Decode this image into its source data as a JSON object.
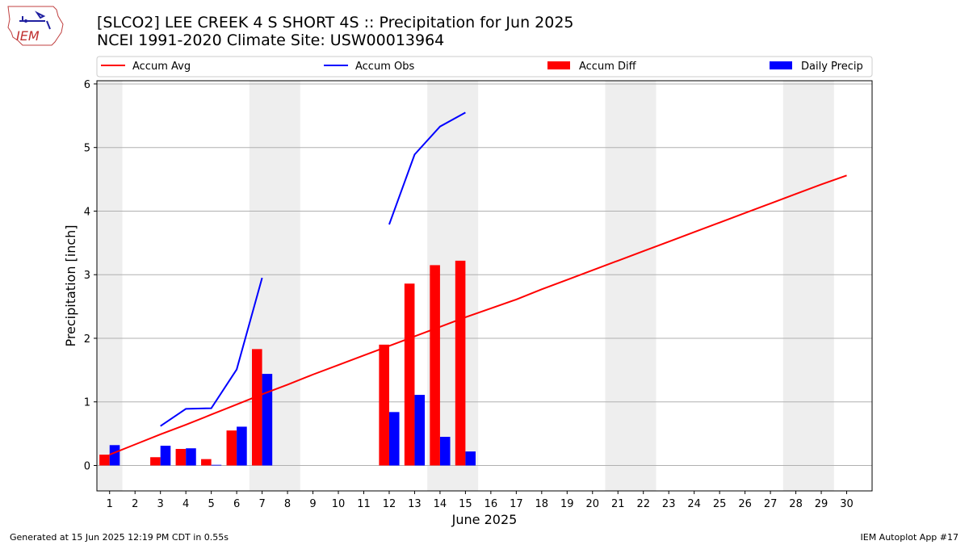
{
  "header": {
    "title_line1": "[SLCO2] LEE CREEK 4 S SHORT 4S :: Precipitation for Jun 2025",
    "title_line2": "NCEI 1991-2020 Climate Site: USW00013964",
    "logo_text": "IEM"
  },
  "footer": {
    "generated": "Generated at 15 Jun 2025 12:19 PM CDT in 0.55s",
    "app": "IEM Autoplot App #17"
  },
  "colors": {
    "accum_avg": "#ff0000",
    "accum_obs": "#0000ff",
    "accum_diff": "#ff0000",
    "daily_precip": "#0000ff",
    "weekend_shade": "#eeeeee",
    "grid": "#b0b0b0"
  },
  "chart_data": {
    "type": "bar",
    "xlabel": "June 2025",
    "ylabel": "Precipitation [inch]",
    "ylim": [
      -0.4,
      6.05
    ],
    "xlim": [
      0.5,
      31.0
    ],
    "yticks": [
      0,
      1,
      2,
      3,
      4,
      5,
      6
    ],
    "xticks": [
      1,
      2,
      3,
      4,
      5,
      6,
      7,
      8,
      9,
      10,
      11,
      12,
      13,
      14,
      15,
      16,
      17,
      18,
      19,
      20,
      21,
      22,
      23,
      24,
      25,
      26,
      27,
      28,
      29,
      30
    ],
    "grid": "y",
    "legend_position": "top",
    "legend": [
      "Accum Avg",
      "Accum Obs",
      "Accum Diff",
      "Daily Precip"
    ],
    "weekend_spans": [
      [
        0.5,
        1.5
      ],
      [
        6.5,
        8.5
      ],
      [
        13.5,
        15.5
      ],
      [
        20.5,
        22.5
      ],
      [
        27.5,
        29.5
      ]
    ],
    "series": [
      {
        "name": "Accum Avg",
        "kind": "line",
        "x": [
          1,
          2,
          3,
          4,
          5,
          6,
          7,
          8,
          9,
          10,
          11,
          12,
          13,
          14,
          15,
          16,
          17,
          18,
          19,
          20,
          21,
          22,
          23,
          24,
          25,
          26,
          27,
          28,
          29,
          30
        ],
        "values": [
          0.17,
          0.33,
          0.49,
          0.64,
          0.8,
          0.96,
          1.12,
          1.27,
          1.43,
          1.58,
          1.73,
          1.88,
          2.03,
          2.18,
          2.33,
          2.47,
          2.61,
          2.77,
          2.92,
          3.07,
          3.22,
          3.37,
          3.52,
          3.67,
          3.82,
          3.97,
          4.12,
          4.27,
          4.42,
          4.56
        ]
      },
      {
        "name": "Accum Obs",
        "kind": "line",
        "segments": [
          {
            "x": [
              3,
              4,
              5,
              6,
              7
            ],
            "values": [
              0.62,
              0.89,
              0.9,
              1.51,
              2.95
            ]
          },
          {
            "x": [
              12,
              13,
              14,
              15
            ],
            "values": [
              3.79,
              4.89,
              5.33,
              5.55
            ]
          }
        ]
      },
      {
        "name": "Accum Diff",
        "kind": "bar",
        "x": [
          1,
          3,
          4,
          5,
          6,
          7,
          12,
          13,
          14,
          15
        ],
        "values": [
          0.17,
          0.13,
          0.26,
          0.1,
          0.55,
          1.83,
          1.9,
          2.86,
          3.15,
          3.22
        ]
      },
      {
        "name": "Daily Precip",
        "kind": "bar",
        "x": [
          1,
          3,
          4,
          5,
          6,
          7,
          12,
          13,
          14,
          15
        ],
        "values": [
          0.32,
          0.31,
          0.27,
          0.01,
          0.61,
          1.44,
          0.84,
          1.11,
          0.45,
          0.22
        ]
      }
    ]
  }
}
